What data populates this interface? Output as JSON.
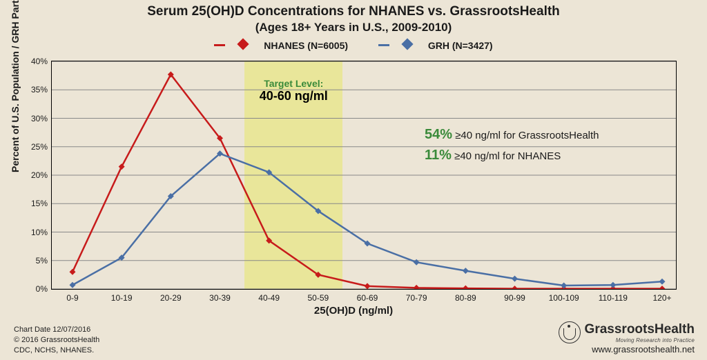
{
  "title": "Serum 25(OH)D Concentrations for NHANES vs. GrassrootsHealth",
  "subtitle": "(Ages 18+ Years in U.S., 2009-2010)",
  "title_fontsize": 19,
  "subtitle_fontsize": 17,
  "background_color": "#ece5d6",
  "chart": {
    "type": "line",
    "categories": [
      "0-9",
      "10-19",
      "20-29",
      "30-39",
      "40-49",
      "50-59",
      "60-69",
      "70-79",
      "80-89",
      "90-99",
      "100-109",
      "110-119",
      "120+"
    ],
    "ylim": [
      0,
      40
    ],
    "ytick_step": 5,
    "ytick_suffix": "%",
    "grid_color": "#888888",
    "ylabel": "Percent of U.S. Population / GRH Participants",
    "xlabel": "25(OH)D (ng/ml)",
    "label_fontsize": 14,
    "tick_fontsize": 12,
    "marker_shape": "diamond",
    "marker_size": 9,
    "line_width": 2.5,
    "target_band": {
      "from_index": 4,
      "to_index": 5,
      "fill": "#e8e67a",
      "opacity": 0.65,
      "label_line1": "Target Level:",
      "label_line2": "40-60 ng/ml",
      "label_line1_color": "#3a8a3a",
      "label_line2_color": "#000000"
    },
    "series": [
      {
        "name": "NHANES",
        "legend_label": "NHANES (N=6005)",
        "color": "#c71b1b",
        "values": [
          3.0,
          21.5,
          37.7,
          26.5,
          8.5,
          2.5,
          0.5,
          0.2,
          0.1,
          0.05,
          0.05,
          0.05,
          0.05
        ]
      },
      {
        "name": "GRH",
        "legend_label": "GRH (N=3427)",
        "color": "#4a6fa5",
        "values": [
          0.7,
          5.5,
          16.3,
          23.8,
          20.5,
          13.7,
          8.0,
          4.7,
          3.2,
          1.8,
          0.6,
          0.7,
          1.3
        ]
      }
    ],
    "callouts": [
      {
        "pct": "54%",
        "text": " ≥40 ng/ml for GrassrootsHealth",
        "pct_color": "#3a8a3a"
      },
      {
        "pct": "11%",
        "text": " ≥40 ng/ml for NHANES",
        "pct_color": "#3a8a3a"
      }
    ]
  },
  "legend_fontsize": 14,
  "footer": {
    "line1": "Chart Date 12/07/2016",
    "line2": "© 2016 GrassrootsHealth",
    "line3": "CDC, NCHS, NHANES."
  },
  "brand": {
    "name": "GrassrootsHealth",
    "tagline": "Moving Research into Practice",
    "url": "www.grassrootshealth.net"
  }
}
